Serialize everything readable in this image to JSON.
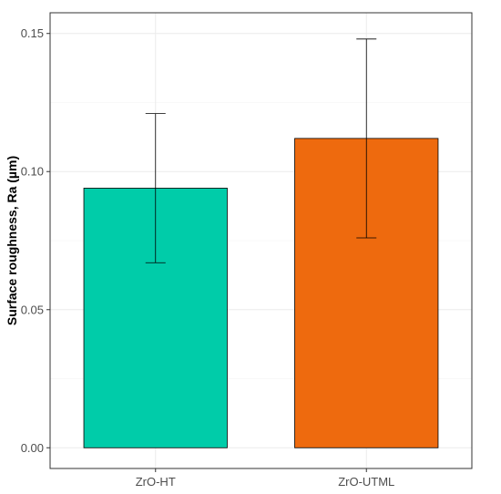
{
  "chart_data": {
    "type": "bar",
    "title": "",
    "xlabel": "",
    "ylabel": "Surface roughness, Ra (µm)",
    "categories": [
      "ZrO-HT",
      "ZrO-UTML"
    ],
    "values": [
      0.094,
      0.112
    ],
    "error_low": [
      0.067,
      0.076
    ],
    "error_high": [
      0.121,
      0.148
    ],
    "colors": [
      "#00CCA9",
      "#EE6A0E"
    ],
    "ylim": [
      -0.0075,
      0.1575
    ],
    "yticks": [
      0.0,
      0.05,
      0.1,
      0.15
    ],
    "ytick_labels": [
      "0.00",
      "0.05",
      "0.10",
      "0.15"
    ],
    "grid": true,
    "legend": "none"
  }
}
